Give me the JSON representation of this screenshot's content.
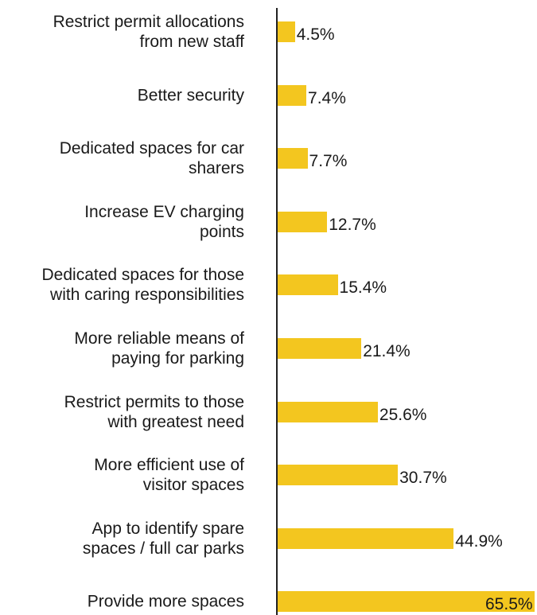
{
  "chart_data": {
    "type": "bar",
    "orientation": "horizontal",
    "categories": [
      "Restrict permit allocations\nfrom new staff",
      "Better security",
      "Dedicated spaces for car\nsharers",
      "Increase EV charging\npoints",
      "Dedicated spaces for those\nwith caring responsibilities",
      "More reliable means of\npaying for parking",
      "Restrict permits to those\nwith greatest need",
      "More efficient use of\nvisitor spaces",
      "App to identify spare\nspaces / full car parks",
      "Provide more spaces"
    ],
    "values": [
      4.5,
      7.4,
      7.7,
      12.7,
      15.4,
      21.4,
      25.6,
      30.7,
      44.9,
      65.5
    ],
    "value_labels": [
      "4.5%",
      "7.4%",
      "7.7%",
      "12.7%",
      "15.4%",
      "21.4%",
      "25.6%",
      "30.7%",
      "44.9%",
      "65.5%"
    ],
    "color": "#f3c61f"
  }
}
